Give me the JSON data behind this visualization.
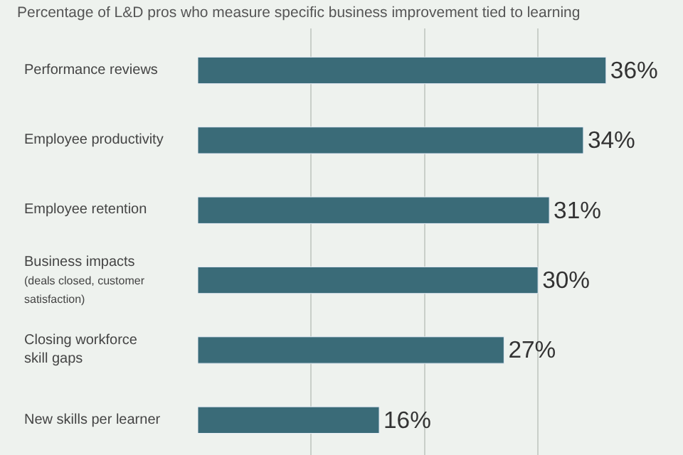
{
  "chart_data": {
    "type": "bar",
    "orientation": "horizontal",
    "title": "Percentage of L&D pros who measure specific business improvement tied to learning",
    "categories": [
      "Performance reviews",
      "Employee productivity",
      "Employee retention",
      "Business impacts\n(deals closed, customer\nsatisfaction)",
      "Closing workforce\nskill gaps",
      "New skills per learner"
    ],
    "values": [
      36,
      34,
      31,
      30,
      27,
      16
    ],
    "value_labels": [
      "36%",
      "34%",
      "31%",
      "30%",
      "27%",
      "16%"
    ],
    "color": "#3a6b78",
    "grid": "x",
    "tick_labels": "y"
  }
}
